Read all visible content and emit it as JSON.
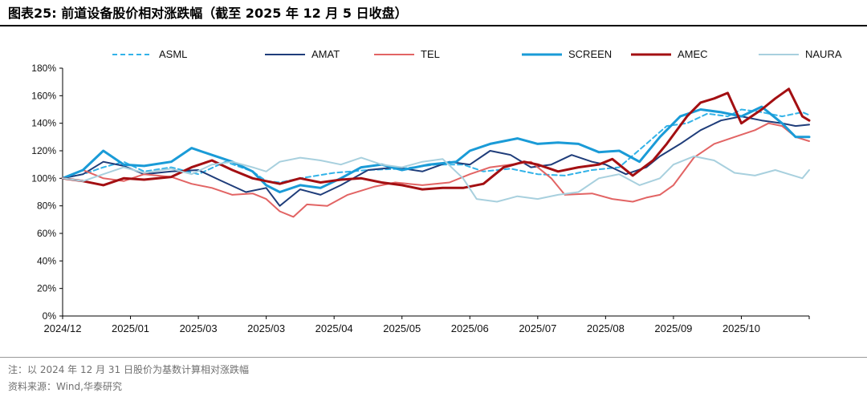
{
  "figure": {
    "title": "图表25:   前道设备股价相对涨跌幅（截至 2025 年 12 月 5 日收盘）",
    "note": "注：以 2024 年 12 月 31 日股价为基数计算相对涨跌幅",
    "source": "资料来源：Wind,华泰研究"
  },
  "colors": {
    "ASML": "#33B3E8",
    "AMAT": "#1F3D7A",
    "TEL": "#E26464",
    "SCREEN": "#1A9BD7",
    "AMEC": "#A30F12",
    "NAURA": "#A8D0DE"
  },
  "chart_data": {
    "type": "line",
    "title": "",
    "xlabel": "",
    "ylabel": "",
    "ylim": [
      0,
      180
    ],
    "yticks": [
      "0%",
      "20%",
      "40%",
      "60%",
      "80%",
      "100%",
      "120%",
      "140%",
      "160%",
      "180%"
    ],
    "xticks": [
      "2024/12",
      "2025/01",
      "2025/03",
      "2025/03",
      "2025/04",
      "2025/05",
      "2025/06",
      "2025/07",
      "2025/08",
      "2025/09",
      "2025/10"
    ],
    "x_range": [
      0,
      11
    ],
    "legend": [
      "ASML",
      "AMAT",
      "TEL",
      "SCREEN",
      "AMEC",
      "NAURA"
    ],
    "series": [
      {
        "name": "ASML",
        "style": "dashed",
        "points": [
          [
            0,
            100
          ],
          [
            0.3,
            103
          ],
          [
            0.6,
            108
          ],
          [
            0.9,
            112
          ],
          [
            1.2,
            105
          ],
          [
            1.6,
            108
          ],
          [
            2.0,
            103
          ],
          [
            2.4,
            112
          ],
          [
            2.8,
            105
          ],
          [
            3.0,
            98
          ],
          [
            3.2,
            97
          ],
          [
            3.5,
            100
          ],
          [
            4.0,
            104
          ],
          [
            4.5,
            106
          ],
          [
            5.0,
            107
          ],
          [
            5.5,
            110
          ],
          [
            5.9,
            110
          ],
          [
            6.2,
            105
          ],
          [
            6.6,
            107
          ],
          [
            7.0,
            103
          ],
          [
            7.4,
            102
          ],
          [
            7.8,
            106
          ],
          [
            8.2,
            108
          ],
          [
            8.6,
            125
          ],
          [
            8.9,
            138
          ],
          [
            9.2,
            140
          ],
          [
            9.5,
            147
          ],
          [
            9.8,
            145
          ],
          [
            10.0,
            150
          ],
          [
            10.3,
            148
          ],
          [
            10.6,
            145
          ],
          [
            10.9,
            148
          ],
          [
            11.0,
            146
          ]
        ]
      },
      {
        "name": "AMAT",
        "style": "solid",
        "points": [
          [
            0,
            100
          ],
          [
            0.3,
            103
          ],
          [
            0.6,
            112
          ],
          [
            0.9,
            109
          ],
          [
            1.2,
            103
          ],
          [
            1.6,
            105
          ],
          [
            2.0,
            106
          ],
          [
            2.3,
            99
          ],
          [
            2.7,
            90
          ],
          [
            3.0,
            93
          ],
          [
            3.2,
            80
          ],
          [
            3.5,
            92
          ],
          [
            3.8,
            88
          ],
          [
            4.1,
            95
          ],
          [
            4.5,
            106
          ],
          [
            4.9,
            108
          ],
          [
            5.3,
            105
          ],
          [
            5.7,
            112
          ],
          [
            6.0,
            110
          ],
          [
            6.3,
            120
          ],
          [
            6.6,
            117
          ],
          [
            6.9,
            108
          ],
          [
            7.2,
            110
          ],
          [
            7.5,
            117
          ],
          [
            7.8,
            112
          ],
          [
            8.0,
            110
          ],
          [
            8.3,
            103
          ],
          [
            8.6,
            108
          ],
          [
            8.8,
            116
          ],
          [
            9.1,
            125
          ],
          [
            9.4,
            135
          ],
          [
            9.7,
            142
          ],
          [
            10.0,
            145
          ],
          [
            10.3,
            142
          ],
          [
            10.6,
            140
          ],
          [
            10.8,
            138
          ],
          [
            11.0,
            139
          ]
        ]
      },
      {
        "name": "TEL",
        "style": "solid",
        "points": [
          [
            0,
            100
          ],
          [
            0.3,
            106
          ],
          [
            0.6,
            100
          ],
          [
            0.9,
            98
          ],
          [
            1.2,
            103
          ],
          [
            1.6,
            101
          ],
          [
            1.9,
            96
          ],
          [
            2.2,
            93
          ],
          [
            2.5,
            88
          ],
          [
            2.8,
            89
          ],
          [
            3.0,
            85
          ],
          [
            3.2,
            76
          ],
          [
            3.4,
            72
          ],
          [
            3.6,
            81
          ],
          [
            3.9,
            80
          ],
          [
            4.2,
            88
          ],
          [
            4.6,
            94
          ],
          [
            4.9,
            97
          ],
          [
            5.3,
            95
          ],
          [
            5.7,
            97
          ],
          [
            6.0,
            103
          ],
          [
            6.3,
            108
          ],
          [
            6.6,
            110
          ],
          [
            6.9,
            112
          ],
          [
            7.2,
            100
          ],
          [
            7.4,
            88
          ],
          [
            7.8,
            89
          ],
          [
            8.1,
            85
          ],
          [
            8.4,
            83
          ],
          [
            8.6,
            86
          ],
          [
            8.8,
            88
          ],
          [
            9.0,
            95
          ],
          [
            9.3,
            115
          ],
          [
            9.6,
            125
          ],
          [
            9.9,
            130
          ],
          [
            10.2,
            135
          ],
          [
            10.4,
            140
          ],
          [
            10.6,
            138
          ],
          [
            10.8,
            130
          ],
          [
            11.0,
            127
          ]
        ]
      },
      {
        "name": "SCREEN",
        "style": "solid",
        "points": [
          [
            0,
            100
          ],
          [
            0.3,
            106
          ],
          [
            0.6,
            120
          ],
          [
            0.9,
            110
          ],
          [
            1.2,
            109
          ],
          [
            1.6,
            112
          ],
          [
            1.9,
            122
          ],
          [
            2.2,
            117
          ],
          [
            2.5,
            112
          ],
          [
            2.8,
            105
          ],
          [
            3.0,
            95
          ],
          [
            3.2,
            90
          ],
          [
            3.5,
            95
          ],
          [
            3.8,
            93
          ],
          [
            4.1,
            100
          ],
          [
            4.4,
            108
          ],
          [
            4.7,
            110
          ],
          [
            5.0,
            106
          ],
          [
            5.4,
            110
          ],
          [
            5.8,
            112
          ],
          [
            6.0,
            120
          ],
          [
            6.3,
            125
          ],
          [
            6.7,
            129
          ],
          [
            7.0,
            125
          ],
          [
            7.3,
            126
          ],
          [
            7.6,
            125
          ],
          [
            7.9,
            119
          ],
          [
            8.2,
            120
          ],
          [
            8.5,
            112
          ],
          [
            8.8,
            130
          ],
          [
            9.1,
            145
          ],
          [
            9.4,
            150
          ],
          [
            9.7,
            148
          ],
          [
            10.0,
            145
          ],
          [
            10.3,
            152
          ],
          [
            10.6,
            140
          ],
          [
            10.8,
            130
          ],
          [
            11.0,
            130
          ]
        ]
      },
      {
        "name": "AMEC",
        "style": "solid",
        "points": [
          [
            0,
            100
          ],
          [
            0.3,
            98
          ],
          [
            0.6,
            95
          ],
          [
            0.9,
            100
          ],
          [
            1.2,
            99
          ],
          [
            1.6,
            101
          ],
          [
            1.9,
            108
          ],
          [
            2.2,
            113
          ],
          [
            2.5,
            106
          ],
          [
            2.8,
            100
          ],
          [
            3.0,
            98
          ],
          [
            3.2,
            96
          ],
          [
            3.5,
            100
          ],
          [
            3.8,
            97
          ],
          [
            4.1,
            99
          ],
          [
            4.4,
            100
          ],
          [
            4.7,
            97
          ],
          [
            5.0,
            95
          ],
          [
            5.3,
            92
          ],
          [
            5.6,
            93
          ],
          [
            5.9,
            93
          ],
          [
            6.2,
            96
          ],
          [
            6.5,
            108
          ],
          [
            6.8,
            112
          ],
          [
            7.0,
            110
          ],
          [
            7.3,
            105
          ],
          [
            7.6,
            108
          ],
          [
            7.9,
            110
          ],
          [
            8.1,
            114
          ],
          [
            8.4,
            102
          ],
          [
            8.7,
            113
          ],
          [
            8.9,
            125
          ],
          [
            9.2,
            145
          ],
          [
            9.4,
            155
          ],
          [
            9.6,
            158
          ],
          [
            9.8,
            162
          ],
          [
            10.0,
            140
          ],
          [
            10.3,
            150
          ],
          [
            10.5,
            158
          ],
          [
            10.7,
            165
          ],
          [
            10.9,
            145
          ],
          [
            11.0,
            142
          ]
        ]
      },
      {
        "name": "NAURA",
        "style": "solid",
        "points": [
          [
            0,
            100
          ],
          [
            0.3,
            98
          ],
          [
            0.6,
            103
          ],
          [
            0.9,
            108
          ],
          [
            1.2,
            104
          ],
          [
            1.6,
            107
          ],
          [
            1.9,
            103
          ],
          [
            2.2,
            110
          ],
          [
            2.5,
            112
          ],
          [
            2.8,
            108
          ],
          [
            3.0,
            105
          ],
          [
            3.2,
            112
          ],
          [
            3.5,
            115
          ],
          [
            3.8,
            113
          ],
          [
            4.1,
            110
          ],
          [
            4.4,
            115
          ],
          [
            4.7,
            110
          ],
          [
            5.0,
            108
          ],
          [
            5.3,
            112
          ],
          [
            5.6,
            114
          ],
          [
            5.9,
            100
          ],
          [
            6.1,
            85
          ],
          [
            6.4,
            83
          ],
          [
            6.7,
            87
          ],
          [
            7.0,
            85
          ],
          [
            7.3,
            88
          ],
          [
            7.6,
            90
          ],
          [
            7.9,
            100
          ],
          [
            8.2,
            103
          ],
          [
            8.5,
            95
          ],
          [
            8.8,
            100
          ],
          [
            9.0,
            110
          ],
          [
            9.3,
            116
          ],
          [
            9.6,
            113
          ],
          [
            9.9,
            104
          ],
          [
            10.2,
            102
          ],
          [
            10.5,
            106
          ],
          [
            10.7,
            103
          ],
          [
            10.9,
            100
          ],
          [
            11.0,
            106
          ]
        ]
      }
    ]
  }
}
